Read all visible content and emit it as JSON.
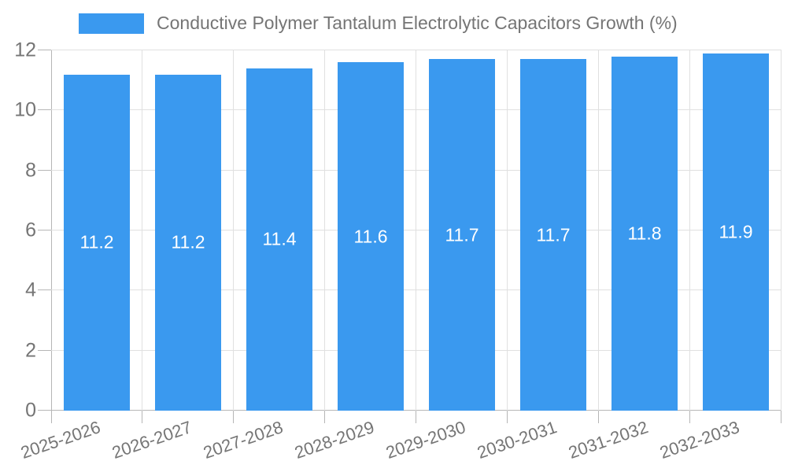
{
  "chart_data": {
    "type": "bar",
    "title": "Conductive Polymer Tantalum Electrolytic Capacitors Growth (%)",
    "legend": {
      "label": "Conductive Polymer Tantalum Electrolytic Capacitors Growth (%)",
      "position": "top"
    },
    "categories": [
      "2025-2026",
      "2026-2027",
      "2027-2028",
      "2028-2029",
      "2029-2030",
      "2030-2031",
      "2031-2032",
      "2032-2033"
    ],
    "values": [
      11.2,
      11.2,
      11.4,
      11.6,
      11.7,
      11.7,
      11.8,
      11.9
    ],
    "value_labels": [
      "11.2",
      "11.2",
      "11.4",
      "11.6",
      "11.7",
      "11.7",
      "11.8",
      "11.9"
    ],
    "xlabel": "",
    "ylabel": "",
    "ylim": [
      0,
      12
    ],
    "yticks": [
      0,
      2,
      4,
      6,
      8,
      10,
      12
    ],
    "grid": true,
    "colors": {
      "bar": "#3a99ef",
      "value_label": "#ffffff",
      "axis_text": "#757575",
      "gridline": "#e0e0e0",
      "axis_line": "#b6b6b6",
      "background": "#ffffff"
    }
  }
}
